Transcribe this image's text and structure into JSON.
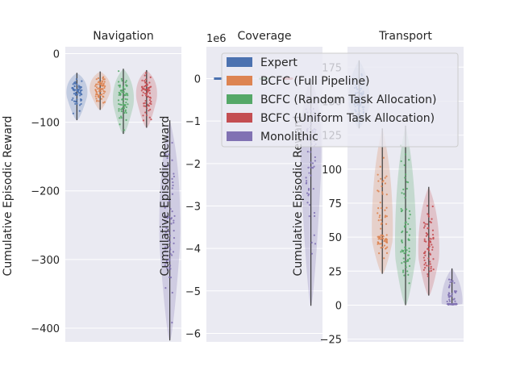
{
  "colors": {
    "background": "#ffffff",
    "axes_face": "#eaeaf2",
    "grid": "#ffffff",
    "text": "#262626",
    "expert": "#4c72b0",
    "full": "#dd8452",
    "random": "#55a868",
    "uniform": "#c44e52",
    "mono": "#8172b3"
  },
  "legend": {
    "placement": "top-right, overlapping panels",
    "items": [
      {
        "label": "Expert",
        "color": "#4c72b0"
      },
      {
        "label": "BCFC (Full Pipeline)",
        "color": "#dd8452"
      },
      {
        "label": "BCFC (Random Task Allocation)",
        "color": "#55a868"
      },
      {
        "label": "BCFC (Uniform Task Allocation)",
        "color": "#c44e52"
      },
      {
        "label": "Monolithic",
        "color": "#8172b3"
      }
    ]
  },
  "chart_data": [
    {
      "type": "violin+strip",
      "title": "Navigation",
      "ylabel": "Cumulative Episodic Reward",
      "offset_text": "",
      "ylim": [
        -420,
        10
      ],
      "yticks": [
        0,
        -100,
        -200,
        -300,
        -400
      ],
      "ytick_labels": [
        "0",
        "−100",
        "−200",
        "−300",
        "−400"
      ],
      "grid": true,
      "series": [
        {
          "name": "Expert",
          "color": "#4c72b0",
          "min": -97,
          "median": -55,
          "max": -28
        },
        {
          "name": "BCFC (Full Pipeline)",
          "color": "#dd8452",
          "min": -82,
          "median": -50,
          "max": -26
        },
        {
          "name": "BCFC (Random Task Allocation)",
          "color": "#55a868",
          "min": -117,
          "median": -65,
          "max": -22
        },
        {
          "name": "BCFC (Uniform Task Allocation)",
          "color": "#c44e52",
          "min": -108,
          "median": -57,
          "max": -24
        },
        {
          "name": "Monolithic",
          "color": "#8172b3",
          "min": -418,
          "median": -250,
          "max": -97
        }
      ]
    },
    {
      "type": "violin+strip",
      "title": "Coverage",
      "ylabel": "Cumulative Episodic Reward",
      "offset_text": "1e6",
      "ylim": [
        -6.2,
        0.75
      ],
      "yticks": [
        0,
        -1,
        -2,
        -3,
        -4,
        -5,
        -6
      ],
      "ytick_labels": [
        "0",
        "−1",
        "−2",
        "−3",
        "−4",
        "−5",
        "−6"
      ],
      "grid": true,
      "series": [
        {
          "name": "Expert",
          "color": "#4c72b0",
          "min": -0.01,
          "median": 0,
          "max": 0.01
        },
        {
          "name": "BCFC (Full Pipeline)",
          "color": "#dd8452",
          "min": -0.01,
          "median": 0,
          "max": 0.01
        },
        {
          "name": "BCFC (Random Task Allocation)",
          "color": "#55a868",
          "min": -0.01,
          "median": 0,
          "max": 0.01
        },
        {
          "name": "BCFC (Uniform Task Allocation)",
          "color": "#c44e52",
          "min": -0.01,
          "median": 0,
          "max": 0.01
        },
        {
          "name": "Monolithic",
          "color": "#8172b3",
          "min": -5.35,
          "median": -1.5,
          "max": 0
        }
      ]
    },
    {
      "type": "violin+strip",
      "title": "Transport",
      "ylabel": "Cumulative Episodic Reward",
      "offset_text": "",
      "ylim": [
        -27,
        190
      ],
      "yticks": [
        -25,
        0,
        25,
        50,
        75,
        100,
        125,
        150,
        175
      ],
      "ytick_labels": [
        "−25",
        "0",
        "25",
        "50",
        "75",
        "100",
        "125",
        "150",
        "175"
      ],
      "grid": true,
      "series": [
        {
          "name": "Expert",
          "color": "#4c72b0",
          "min": 130,
          "median": 150,
          "max": 180
        },
        {
          "name": "BCFC (Full Pipeline)",
          "color": "#dd8452",
          "min": 23,
          "median": 52,
          "max": 130
        },
        {
          "name": "BCFC (Random Task Allocation)",
          "color": "#55a868",
          "min": 0,
          "median": 42,
          "max": 132
        },
        {
          "name": "BCFC (Uniform Task Allocation)",
          "color": "#c44e52",
          "min": 7,
          "median": 40,
          "max": 87
        },
        {
          "name": "Monolithic",
          "color": "#8172b3",
          "min": 0,
          "median": 1,
          "max": 27
        }
      ]
    }
  ]
}
